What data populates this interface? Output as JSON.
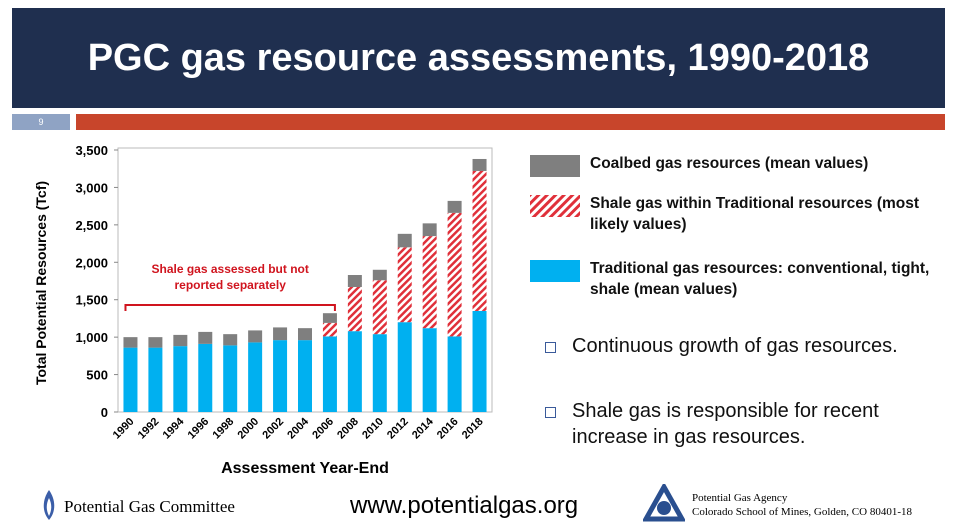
{
  "header": {
    "title": "PGC gas resource assessments, 1990-2018",
    "slide_number": "9"
  },
  "chart_data": {
    "type": "stacked-bar",
    "xlabel": "Assessment Year-End",
    "ylabel": "Total Potential Resources (Tcf)",
    "categories": [
      "1990",
      "1992",
      "1994",
      "1996",
      "1998",
      "2000",
      "2002",
      "2004",
      "2006",
      "2008",
      "2010",
      "2012",
      "2014",
      "2016",
      "2018"
    ],
    "series": [
      {
        "name": "Traditional gas resources: conventional, tight, shale (mean values)",
        "color": "#00b0f0",
        "values": [
          860,
          860,
          880,
          910,
          890,
          930,
          960,
          960,
          1010,
          1080,
          1040,
          1200,
          1120,
          1010,
          1350
        ]
      },
      {
        "name": "Shale gas within Traditional resources (most likely values)",
        "color": "#e0303a",
        "hatch": true,
        "values": [
          0,
          0,
          0,
          0,
          0,
          0,
          0,
          0,
          180,
          590,
          720,
          1000,
          1230,
          1650,
          1870
        ]
      },
      {
        "name": "Coalbed gas resources (mean values)",
        "color": "#7f7f7f",
        "values": [
          140,
          140,
          150,
          160,
          150,
          160,
          170,
          160,
          130,
          160,
          140,
          180,
          170,
          160,
          160
        ]
      }
    ],
    "ylim": [
      0,
      3500
    ],
    "yticks": [
      0,
      500,
      {
        "value": 1000,
        "label": "1,000"
      },
      {
        "value": 1500,
        "label": "1,500"
      },
      {
        "value": 2000,
        "label": "2,000"
      },
      {
        "value": 2500,
        "label": "2,500"
      },
      {
        "value": 3000,
        "label": "3,000"
      },
      {
        "value": 3500,
        "label": "3,500"
      }
    ],
    "annotation": "Shale gas assessed but not reported separately"
  },
  "bullets": [
    "Continuous growth of gas resources.",
    "Shale gas is responsible for recent increase in gas resources."
  ],
  "footer": {
    "committee": "Potential Gas Committee",
    "url": "www.potentialgas.org",
    "agency": "Potential Gas Agency",
    "address": "Colorado School of Mines, Golden, CO 80401-18"
  }
}
